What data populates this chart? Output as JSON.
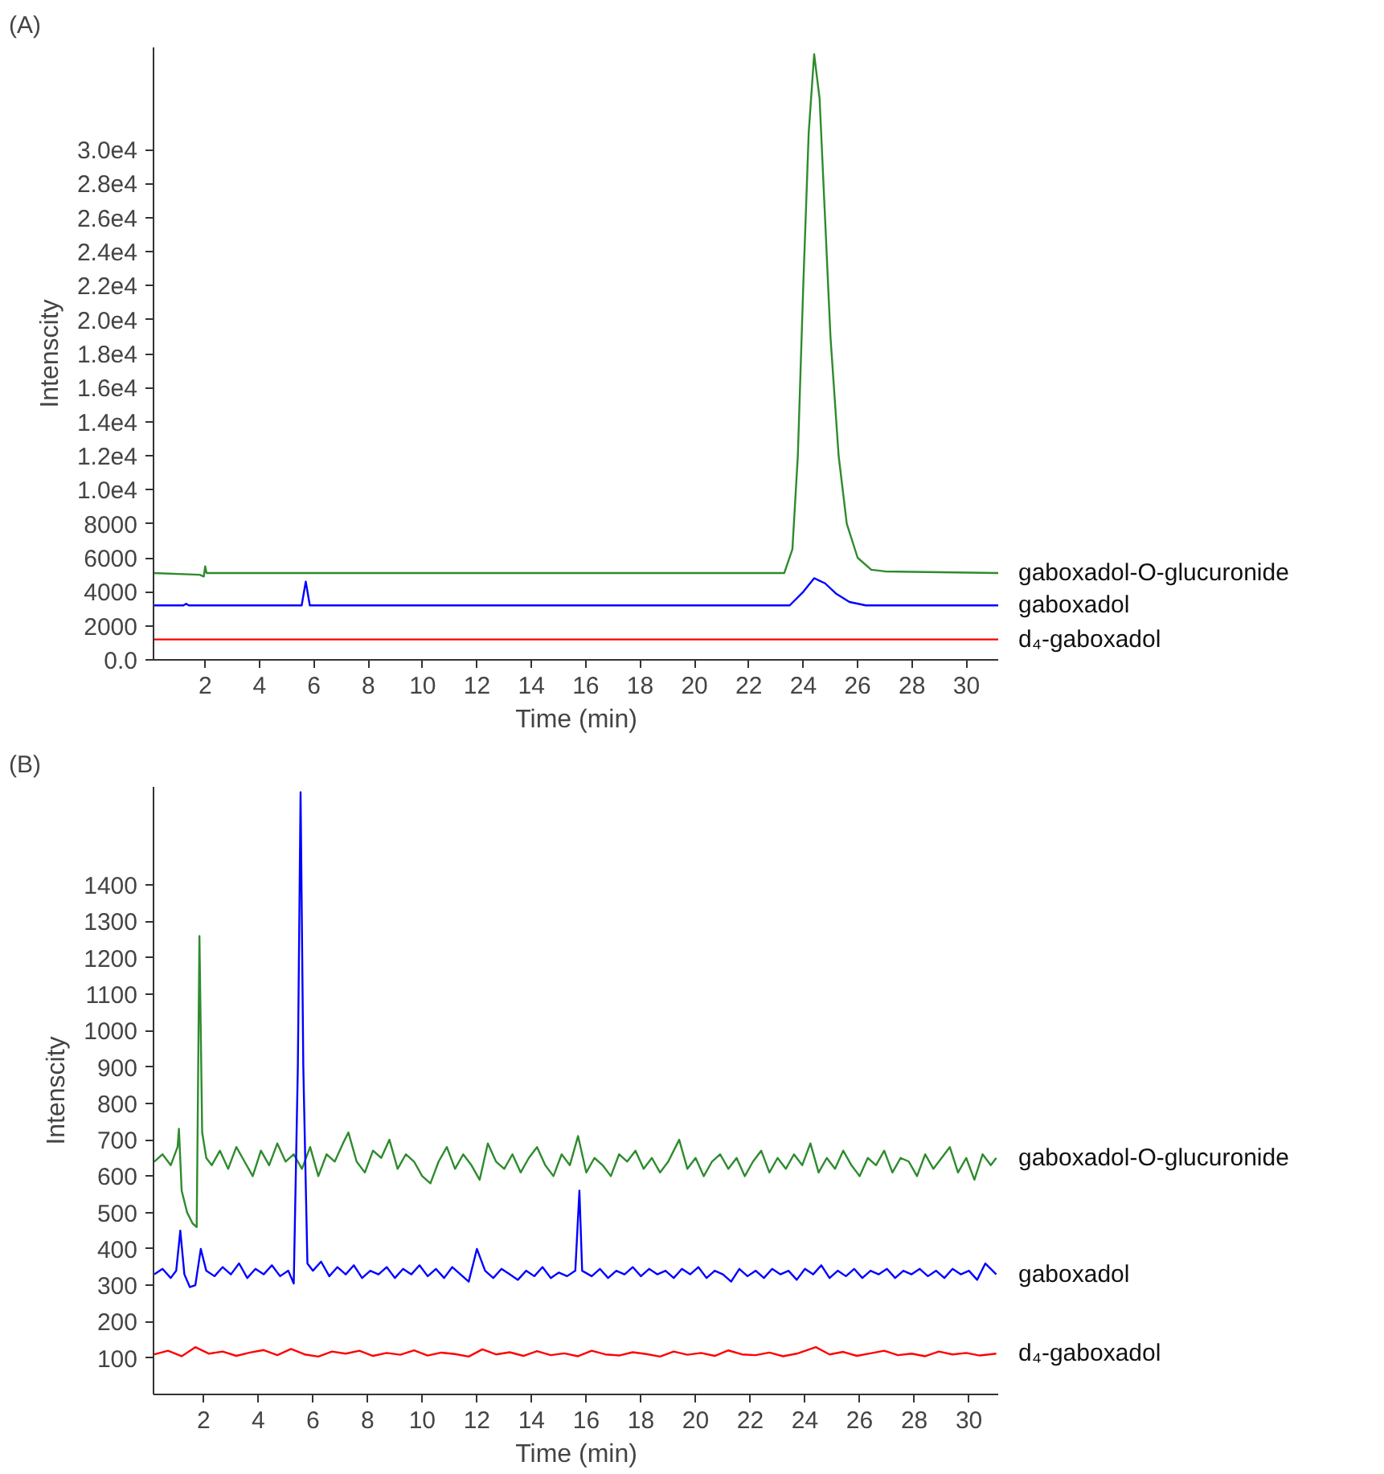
{
  "chart_data": [
    {
      "type": "line",
      "title": "(A)",
      "xlabel": "Time (min)",
      "ylabel": "Intenscity",
      "legend": false,
      "xlim": [
        0.1,
        31.2
      ],
      "ylim": [
        0,
        36000
      ],
      "xticks": [
        2,
        4,
        6,
        8,
        10,
        12,
        14,
        16,
        18,
        20,
        22,
        24,
        26,
        28,
        30
      ],
      "yticks": [
        {
          "value": 0,
          "label": "0.0"
        },
        2000,
        4000,
        6000,
        8000,
        {
          "value": 10000,
          "label": "1.0e4"
        },
        {
          "value": 12000,
          "label": "1.2e4"
        },
        {
          "value": 14000,
          "label": "1.4e4"
        },
        {
          "value": 16000,
          "label": "1.6e4"
        },
        {
          "value": 18000,
          "label": "1.8e4"
        },
        {
          "value": 20000,
          "label": "2.0e4"
        },
        {
          "value": 22000,
          "label": "2.2e4"
        },
        {
          "value": 24000,
          "label": "2.4e4"
        },
        {
          "value": 26000,
          "label": "2.6e4"
        },
        {
          "value": 28000,
          "label": "2.8e4"
        },
        {
          "value": 30000,
          "label": "3.0e4"
        }
      ],
      "series": [
        {
          "name": "gaboxadol-O-glucuronide",
          "color": "#2e8b2e",
          "x": [
            0.1,
            1.8,
            1.95,
            2.0,
            2.05,
            2.2,
            10,
            20,
            23.3,
            23.6,
            23.8,
            24.0,
            24.2,
            24.4,
            24.6,
            24.8,
            25.0,
            25.3,
            25.6,
            26.0,
            26.5,
            27.0,
            31.2
          ],
          "values": [
            5100,
            5000,
            4900,
            5500,
            5100,
            5100,
            5100,
            5100,
            5100,
            6500,
            12000,
            22000,
            31000,
            35600,
            33000,
            26000,
            19000,
            12000,
            8000,
            6000,
            5300,
            5200,
            5100
          ]
        },
        {
          "name": "gaboxadol",
          "color": "#0000ff",
          "x": [
            0.1,
            1.2,
            1.3,
            1.4,
            5.55,
            5.7,
            5.85,
            23.5,
            24.0,
            24.4,
            24.8,
            25.2,
            25.7,
            26.3,
            31.2
          ],
          "values": [
            3200,
            3200,
            3300,
            3200,
            3200,
            4600,
            3200,
            3200,
            4000,
            4800,
            4500,
            3900,
            3400,
            3200,
            3200
          ]
        },
        {
          "name": "d₄-gaboxadol",
          "color": "#ff0000",
          "x": [
            0.1,
            31.2
          ],
          "values": [
            1200,
            1200
          ]
        }
      ]
    },
    {
      "type": "line",
      "title": "(B)",
      "xlabel": "Time (min)",
      "ylabel": "Intenscity",
      "legend": false,
      "xlim": [
        0.17,
        31.1
      ],
      "ylim": [
        0,
        1670
      ],
      "xticks": [
        2,
        4,
        6,
        8,
        10,
        12,
        14,
        16,
        18,
        20,
        22,
        24,
        26,
        28,
        30
      ],
      "yticks": [
        100,
        200,
        300,
        400,
        500,
        600,
        700,
        800,
        900,
        1000,
        1100,
        1200,
        1300,
        1400
      ],
      "series": [
        {
          "name": "gaboxadol-O-glucuronide",
          "color": "#2e8b2e",
          "x": [
            0.2,
            0.5,
            0.8,
            1.05,
            1.1,
            1.2,
            1.4,
            1.6,
            1.75,
            1.85,
            1.95,
            2.1,
            2.3,
            2.6,
            2.9,
            3.2,
            3.5,
            3.8,
            4.1,
            4.4,
            4.7,
            5.0,
            5.3,
            5.6,
            5.9,
            6.2,
            6.5,
            6.8,
            7.1,
            7.3,
            7.6,
            7.9,
            8.2,
            8.5,
            8.8,
            9.1,
            9.4,
            9.7,
            10.0,
            10.3,
            10.6,
            10.9,
            11.2,
            11.5,
            11.8,
            12.1,
            12.4,
            12.7,
            13.0,
            13.3,
            13.6,
            13.9,
            14.2,
            14.5,
            14.8,
            15.1,
            15.4,
            15.7,
            16.0,
            16.3,
            16.6,
            16.9,
            17.2,
            17.5,
            17.8,
            18.1,
            18.4,
            18.7,
            19.0,
            19.4,
            19.7,
            20.0,
            20.3,
            20.6,
            20.9,
            21.2,
            21.5,
            21.8,
            22.1,
            22.4,
            22.7,
            23.0,
            23.3,
            23.6,
            23.9,
            24.2,
            24.5,
            24.8,
            25.1,
            25.4,
            25.7,
            26.0,
            26.3,
            26.6,
            26.9,
            27.2,
            27.5,
            27.8,
            28.1,
            28.4,
            28.7,
            29.0,
            29.3,
            29.6,
            29.9,
            30.2,
            30.5,
            30.8,
            31.0
          ],
          "values": [
            640,
            660,
            630,
            680,
            730,
            560,
            500,
            470,
            460,
            1260,
            720,
            650,
            630,
            670,
            620,
            680,
            640,
            600,
            670,
            630,
            690,
            640,
            660,
            620,
            680,
            600,
            660,
            640,
            690,
            720,
            640,
            610,
            670,
            650,
            700,
            620,
            660,
            640,
            600,
            580,
            640,
            680,
            620,
            660,
            630,
            590,
            690,
            640,
            620,
            660,
            610,
            650,
            680,
            630,
            600,
            660,
            630,
            710,
            610,
            650,
            630,
            600,
            660,
            640,
            670,
            620,
            650,
            610,
            640,
            700,
            620,
            650,
            600,
            640,
            660,
            620,
            650,
            600,
            640,
            670,
            610,
            650,
            620,
            660,
            630,
            690,
            610,
            650,
            620,
            670,
            630,
            600,
            650,
            630,
            670,
            610,
            650,
            640,
            600,
            660,
            620,
            650,
            680,
            610,
            650,
            590,
            660,
            630,
            650
          ]
        },
        {
          "name": "gaboxadol",
          "color": "#0000ff",
          "x": [
            0.2,
            0.5,
            0.8,
            1.0,
            1.15,
            1.3,
            1.5,
            1.7,
            1.9,
            2.1,
            2.4,
            2.7,
            3.0,
            3.3,
            3.6,
            3.9,
            4.2,
            4.5,
            4.8,
            5.1,
            5.3,
            5.45,
            5.55,
            5.65,
            5.8,
            6.0,
            6.3,
            6.6,
            6.9,
            7.2,
            7.5,
            7.8,
            8.1,
            8.4,
            8.7,
            9.0,
            9.3,
            9.6,
            9.9,
            10.2,
            10.5,
            10.8,
            11.1,
            11.4,
            11.7,
            12.0,
            12.3,
            12.6,
            12.9,
            13.2,
            13.5,
            13.8,
            14.1,
            14.4,
            14.7,
            15.0,
            15.3,
            15.6,
            15.75,
            15.85,
            16.2,
            16.5,
            16.8,
            17.1,
            17.4,
            17.7,
            18.0,
            18.3,
            18.6,
            18.9,
            19.2,
            19.5,
            19.8,
            20.1,
            20.4,
            20.7,
            21.0,
            21.3,
            21.6,
            21.9,
            22.2,
            22.5,
            22.8,
            23.1,
            23.4,
            23.7,
            24.0,
            24.3,
            24.6,
            24.9,
            25.2,
            25.5,
            25.8,
            26.1,
            26.4,
            26.7,
            27.0,
            27.3,
            27.6,
            27.9,
            28.2,
            28.5,
            28.8,
            29.1,
            29.4,
            29.7,
            30.0,
            30.3,
            30.6,
            31.0
          ],
          "values": [
            330,
            345,
            320,
            340,
            450,
            330,
            295,
            300,
            400,
            340,
            325,
            350,
            330,
            360,
            320,
            345,
            330,
            355,
            325,
            340,
            305,
            900,
            1655,
            900,
            360,
            340,
            365,
            325,
            350,
            330,
            355,
            320,
            340,
            330,
            350,
            320,
            345,
            330,
            355,
            325,
            345,
            320,
            350,
            330,
            310,
            400,
            340,
            320,
            345,
            330,
            315,
            340,
            325,
            350,
            320,
            335,
            325,
            340,
            560,
            340,
            325,
            345,
            320,
            340,
            330,
            350,
            325,
            345,
            330,
            340,
            320,
            345,
            330,
            350,
            320,
            340,
            330,
            310,
            345,
            325,
            340,
            320,
            345,
            330,
            340,
            315,
            345,
            330,
            355,
            320,
            340,
            325,
            345,
            320,
            340,
            330,
            345,
            320,
            340,
            330,
            345,
            325,
            340,
            320,
            345,
            330,
            340,
            315,
            360,
            330
          ]
        },
        {
          "name": "d₄-gaboxadol",
          "color": "#ff0000",
          "x": [
            0.2,
            0.7,
            1.2,
            1.7,
            2.2,
            2.7,
            3.2,
            3.7,
            4.2,
            4.7,
            5.2,
            5.7,
            6.2,
            6.7,
            7.2,
            7.7,
            8.2,
            8.7,
            9.2,
            9.7,
            10.2,
            10.7,
            11.2,
            11.7,
            12.2,
            12.7,
            13.2,
            13.7,
            14.2,
            14.7,
            15.2,
            15.7,
            16.2,
            16.7,
            17.2,
            17.7,
            18.2,
            18.7,
            19.2,
            19.7,
            20.2,
            20.7,
            21.2,
            21.7,
            22.2,
            22.7,
            23.2,
            23.7,
            24.4,
            24.9,
            25.4,
            25.9,
            26.4,
            26.9,
            27.4,
            27.9,
            28.4,
            28.9,
            29.4,
            29.9,
            30.4,
            31.0
          ],
          "values": [
            110,
            120,
            105,
            130,
            112,
            118,
            106,
            115,
            122,
            108,
            125,
            110,
            104,
            118,
            112,
            120,
            106,
            114,
            109,
            121,
            107,
            115,
            111,
            104,
            124,
            110,
            116,
            106,
            119,
            108,
            113,
            105,
            120,
            110,
            107,
            116,
            111,
            104,
            118,
            109,
            114,
            106,
            121,
            110,
            108,
            115,
            105,
            112,
            130,
            110,
            117,
            106,
            113,
            120,
            108,
            112,
            105,
            118,
            110,
            114,
            107,
            112
          ]
        }
      ]
    }
  ]
}
